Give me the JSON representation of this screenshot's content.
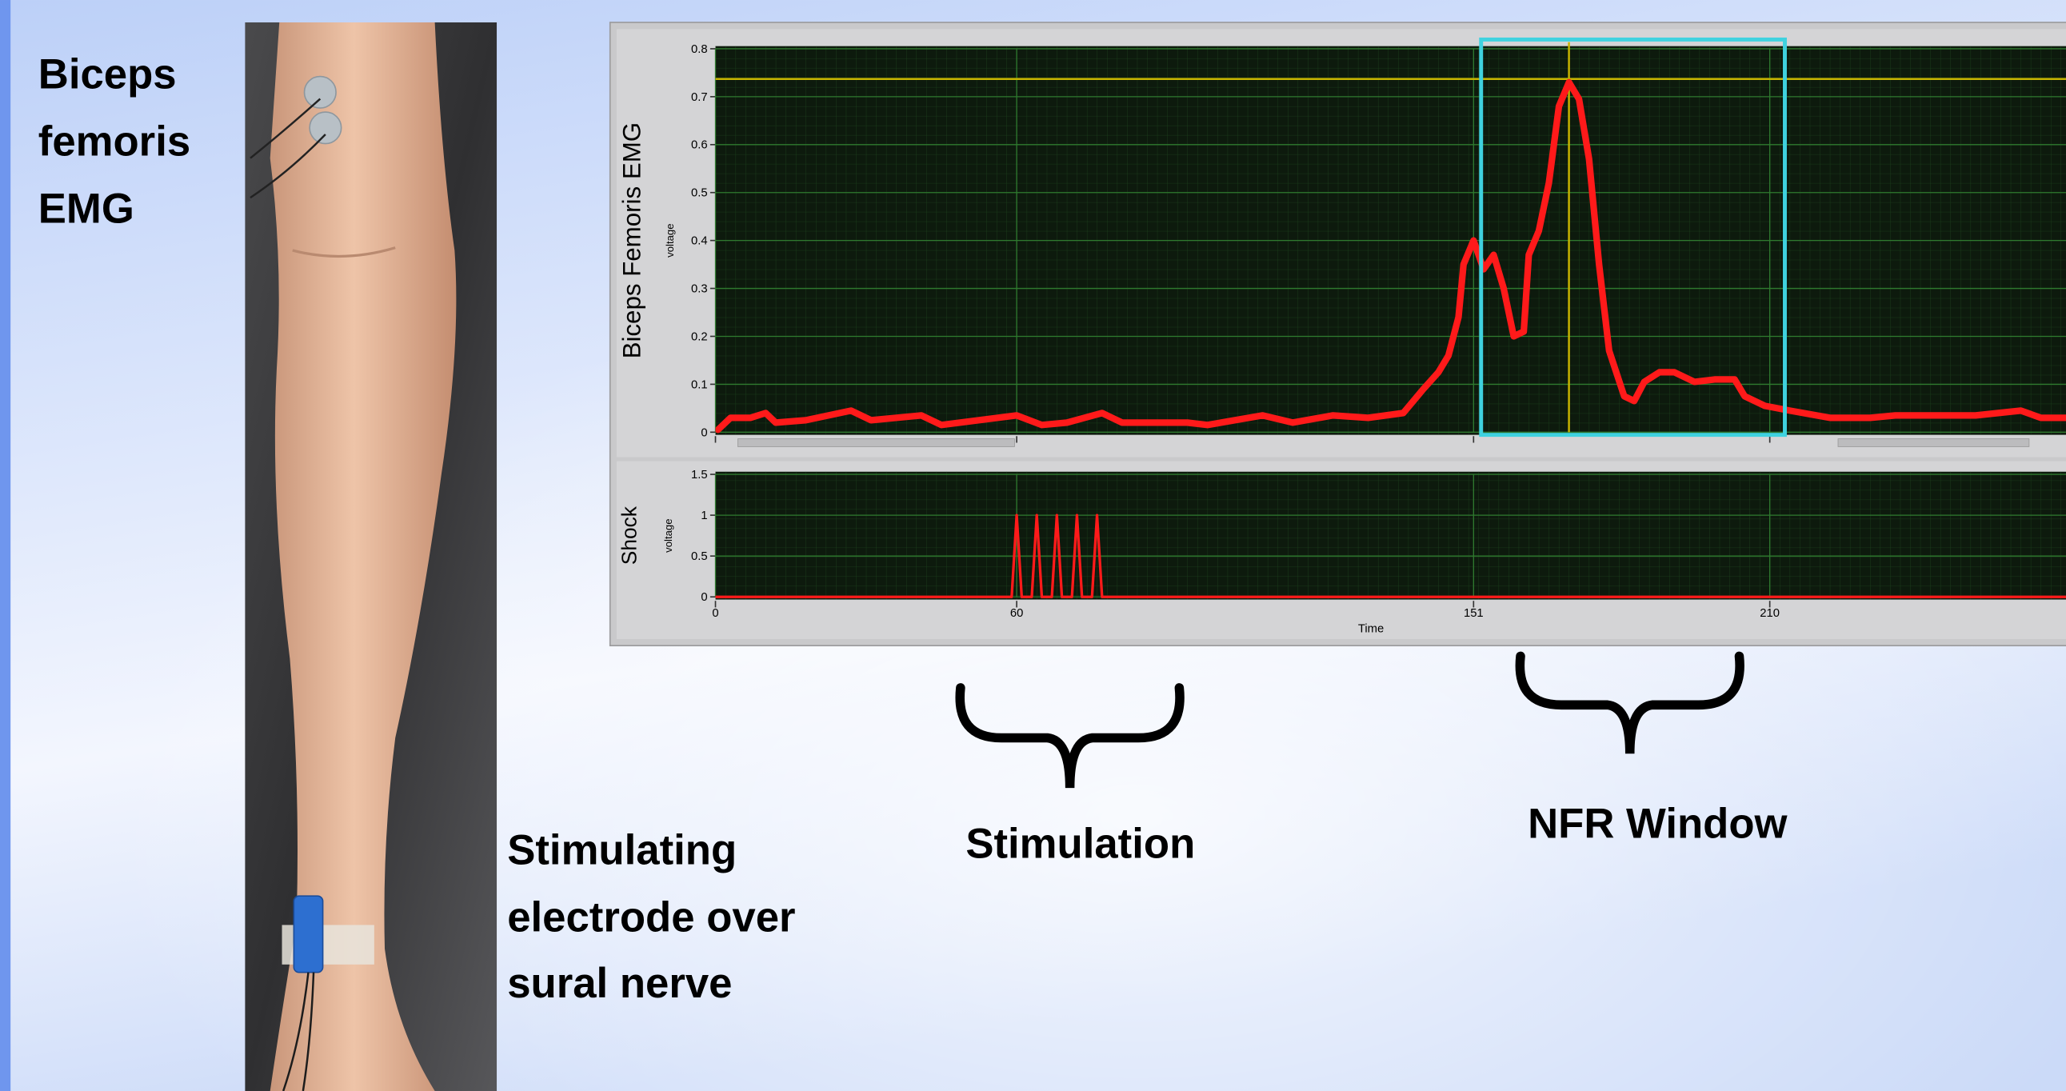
{
  "labels": {
    "muscle": [
      "Biceps",
      "femoris",
      "EMG"
    ],
    "electrode": [
      "Stimulating",
      "electrode over",
      "sural nerve"
    ],
    "stimulation": "Stimulation",
    "nfr_window": "NFR Window"
  },
  "chart_data": [
    {
      "type": "line",
      "ylabel": "Biceps Femoris EMG",
      "y_unit_label": "voltage",
      "xlim": [
        0,
        269
      ],
      "xticks": [
        0,
        60,
        151,
        210
      ],
      "ylim": [
        0,
        0.8
      ],
      "yticks": [
        0,
        0.1,
        0.2,
        0.3,
        0.4,
        0.5,
        0.6,
        0.7,
        0.8
      ],
      "grid": true,
      "window": [
        152.5,
        213
      ],
      "window_color": "#3fd2df",
      "cursor": {
        "x": 170,
        "y": 0.737,
        "color": "#c8b400"
      },
      "series": [
        {
          "name": "EMG",
          "color": "#ff1a1a",
          "x": [
            0.5,
            3,
            7,
            10,
            12,
            18,
            27,
            31,
            41,
            45,
            60,
            65,
            70,
            77,
            81,
            94,
            98,
            109,
            115,
            123,
            130,
            137,
            141,
            144,
            146,
            148,
            149,
            151,
            153,
            155,
            157,
            159,
            161,
            162,
            164,
            166,
            168,
            170,
            172,
            174,
            176,
            178,
            181,
            183,
            185,
            188,
            191,
            195,
            199,
            203,
            205,
            209,
            214,
            222,
            230,
            235,
            243,
            251,
            260,
            264,
            269
          ],
          "values": [
            0.005,
            0.03,
            0.03,
            0.04,
            0.02,
            0.025,
            0.045,
            0.025,
            0.035,
            0.015,
            0.035,
            0.015,
            0.02,
            0.04,
            0.02,
            0.02,
            0.015,
            0.035,
            0.02,
            0.035,
            0.03,
            0.04,
            0.09,
            0.125,
            0.16,
            0.24,
            0.35,
            0.4,
            0.34,
            0.37,
            0.3,
            0.2,
            0.21,
            0.37,
            0.42,
            0.52,
            0.68,
            0.73,
            0.695,
            0.57,
            0.35,
            0.17,
            0.075,
            0.065,
            0.105,
            0.125,
            0.125,
            0.105,
            0.11,
            0.11,
            0.075,
            0.055,
            0.045,
            0.03,
            0.03,
            0.035,
            0.035,
            0.035,
            0.045,
            0.03,
            0.03
          ]
        }
      ]
    },
    {
      "type": "line",
      "ylabel": "Shock",
      "y_unit_label": "voltage",
      "xlabel": "Time",
      "xlim": [
        0,
        269
      ],
      "xticks": [
        0,
        60,
        151,
        210
      ],
      "ylim": [
        0,
        1.5
      ],
      "yticks": [
        0,
        0.5,
        1,
        1.5
      ],
      "grid": true,
      "series": [
        {
          "name": "Shock",
          "color": "#ff1a1a",
          "x": [
            0,
            59,
            60,
            61,
            63,
            64,
            65,
            67,
            68,
            69,
            71,
            72,
            73,
            75,
            76,
            77,
            269
          ],
          "values": [
            0,
            0,
            1,
            0,
            0,
            1,
            0,
            0,
            1,
            0,
            0,
            1,
            0,
            0,
            1,
            0,
            0
          ]
        }
      ]
    }
  ]
}
